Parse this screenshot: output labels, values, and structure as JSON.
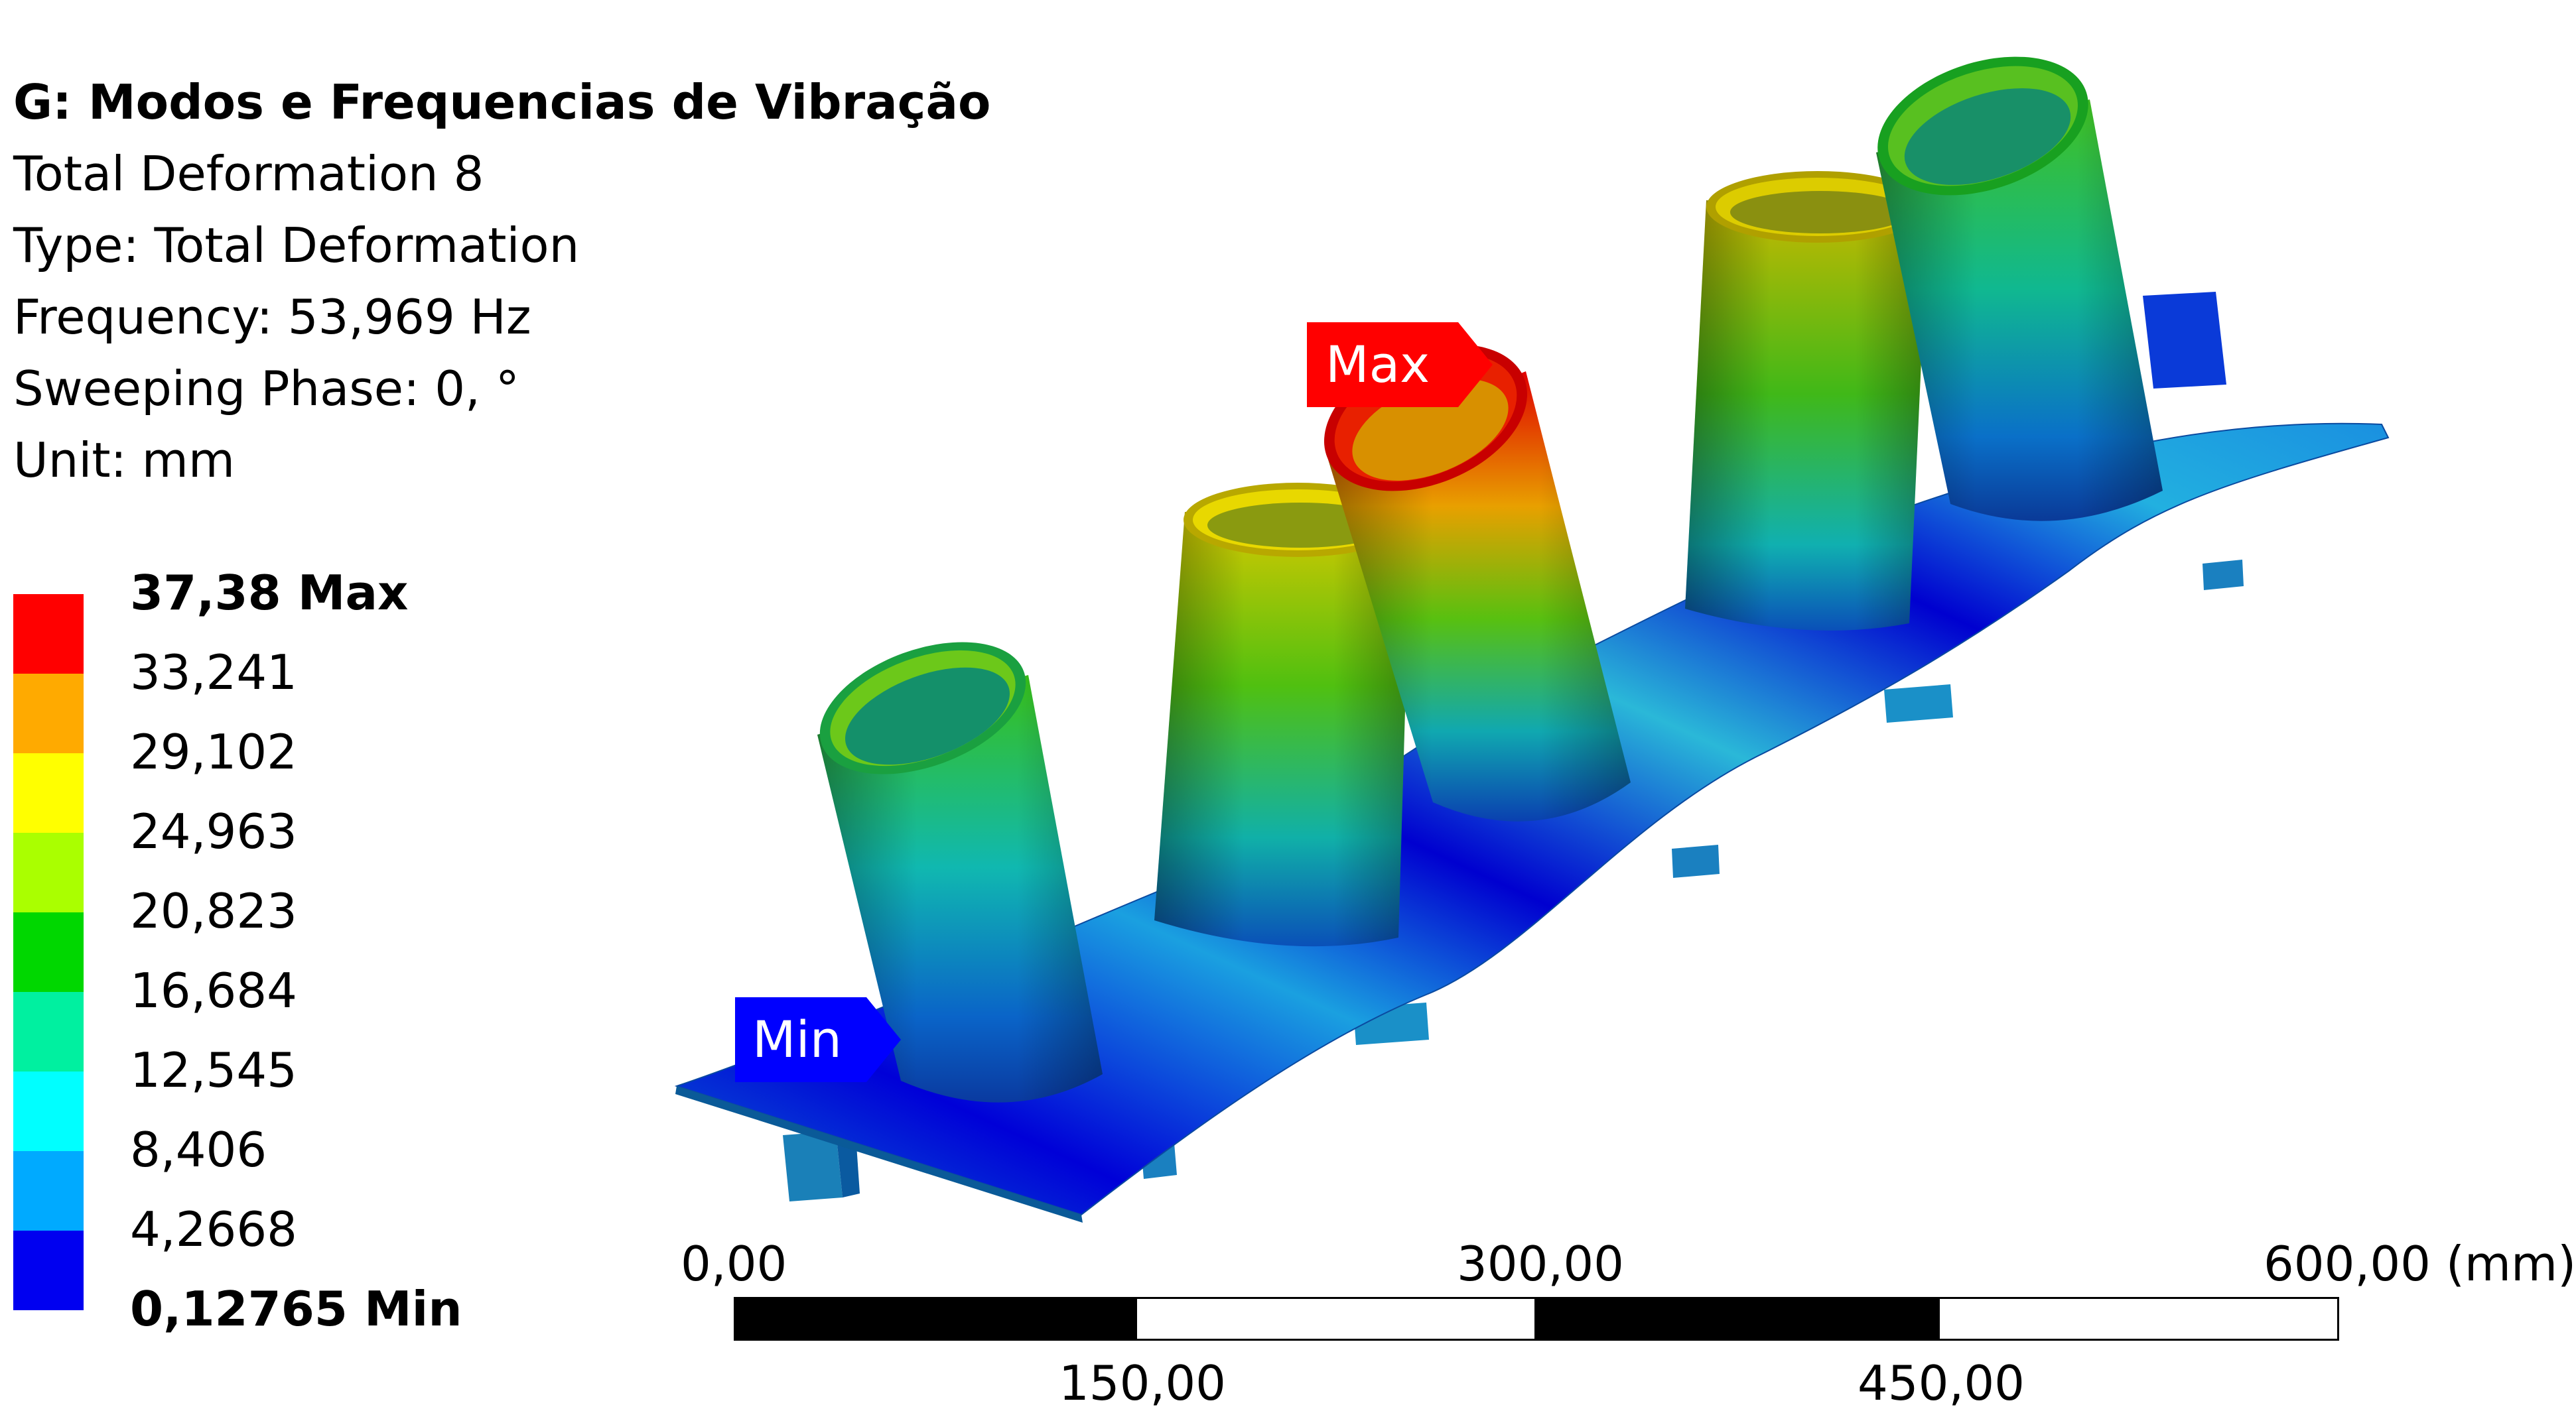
{
  "info": {
    "title": "G: Modos e Frequencias de Vibração",
    "result": "Total Deformation 8",
    "type": "Type: Total Deformation",
    "frequency": "Frequency: 53,969 Hz",
    "phase": "Sweeping Phase: 0, °",
    "unit": "Unit: mm"
  },
  "legend": {
    "colors": [
      "#ff0000",
      "#ffaa00",
      "#ffff00",
      "#aaff00",
      "#00d700",
      "#00f0a0",
      "#00ffff",
      "#00aaff",
      "#0000f0"
    ],
    "labels": [
      "37,38 Max",
      "33,241",
      "29,102",
      "24,963",
      "20,823",
      "16,684",
      "12,545",
      "8,406",
      "4,2668",
      "0,12765 Min"
    ]
  },
  "probes": {
    "max_label": "Max",
    "min_label": "Min",
    "max_color": "#ff0000",
    "min_color": "#0000ff"
  },
  "scale": {
    "top_labels": [
      "0,00",
      "300,00",
      "600,00 (mm)"
    ],
    "bottom_labels": [
      "150,00",
      "450,00"
    ]
  }
}
